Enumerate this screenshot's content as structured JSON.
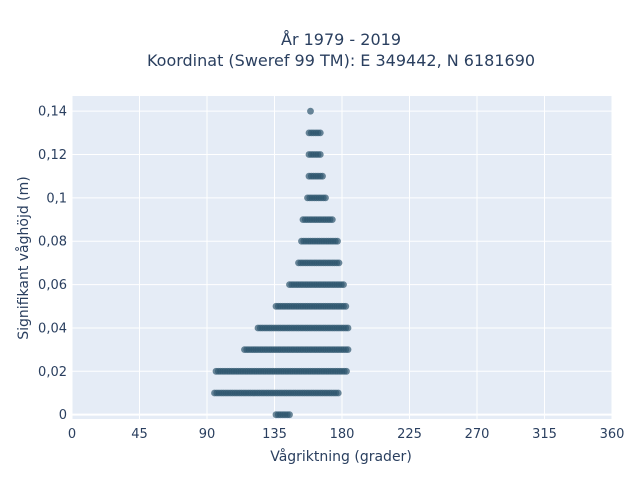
{
  "chart_data": {
    "type": "scatter",
    "title": "År 1979 - 2019",
    "subtitle": "Koordinat (Sweref 99 TM): E 349442, N 6181690",
    "xlabel": "Vågriktning (grader)",
    "ylabel": "Signifikant våghöjd (m)",
    "xlim": [
      0,
      360
    ],
    "ylim": [
      -0.002,
      0.147
    ],
    "xticks": [
      0,
      45,
      90,
      135,
      180,
      225,
      270,
      315,
      360
    ],
    "xtick_labels": [
      "0",
      "45",
      "90",
      "135",
      "180",
      "225",
      "270",
      "315",
      "360"
    ],
    "yticks": [
      0,
      0.02,
      0.04,
      0.06,
      0.08,
      0.1,
      0.12,
      0.14
    ],
    "ytick_labels": [
      "0",
      "0,02",
      "0,04",
      "0,06",
      "0,08",
      "0,1",
      "0,12",
      "0,14"
    ],
    "grid": true,
    "bands": [
      {
        "y": 0.0,
        "xmin": 136,
        "xmax": 146
      },
      {
        "y": 0.01,
        "xmin": 95,
        "xmax": 178
      },
      {
        "y": 0.02,
        "xmin": 96,
        "xmax": 183
      },
      {
        "y": 0.03,
        "xmin": 115,
        "xmax": 185
      },
      {
        "y": 0.04,
        "xmin": 124,
        "xmax": 184
      },
      {
        "y": 0.05,
        "xmin": 136,
        "xmax": 183
      },
      {
        "y": 0.06,
        "xmin": 145,
        "xmax": 181
      },
      {
        "y": 0.07,
        "xmin": 151,
        "xmax": 178
      },
      {
        "y": 0.08,
        "xmin": 153,
        "xmax": 177
      },
      {
        "y": 0.09,
        "xmin": 154,
        "xmax": 174
      },
      {
        "y": 0.1,
        "xmin": 157,
        "xmax": 170
      },
      {
        "y": 0.11,
        "xmin": 158,
        "xmax": 168
      },
      {
        "y": 0.12,
        "xmin": 158,
        "xmax": 166
      },
      {
        "y": 0.13,
        "xmin": 158,
        "xmax": 166
      },
      {
        "y": 0.14,
        "xmin": 159,
        "xmax": 159
      }
    ],
    "colors": {
      "marker": "#2e566e",
      "plot_bg": "#e5ecf6",
      "grid": "#ffffff",
      "text": "#2a3f5f"
    }
  }
}
